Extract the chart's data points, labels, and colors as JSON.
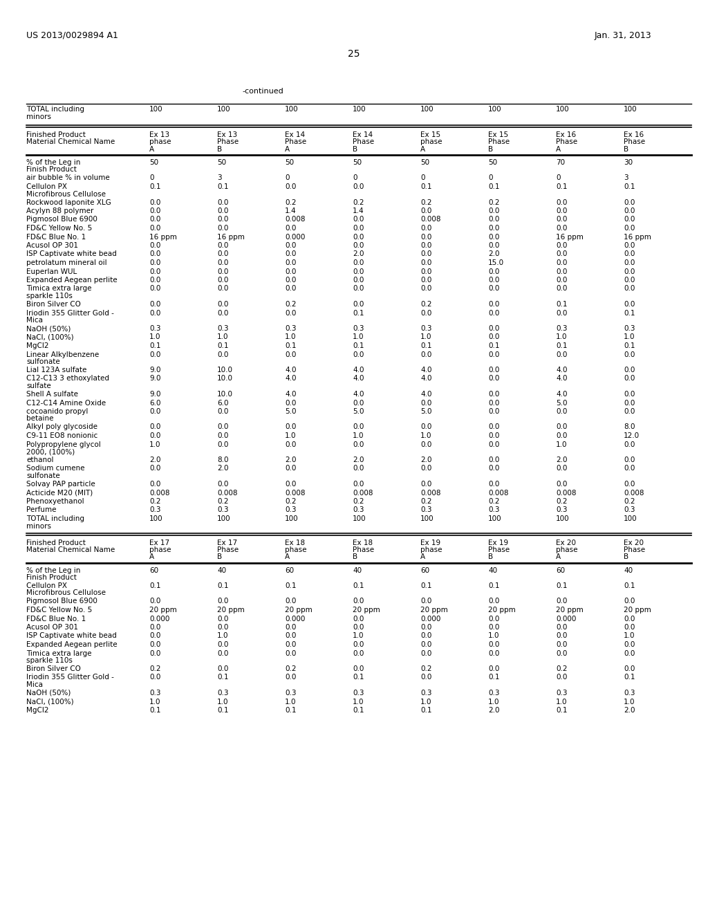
{
  "header_left": "US 2013/0029894 A1",
  "header_right": "Jan. 31, 2013",
  "page_number": "25",
  "continued_text": "-continued",
  "table1_total_row": [
    "TOTAL including\nminors",
    "100",
    "100",
    "100",
    "100",
    "100",
    "100",
    "100",
    "100"
  ],
  "table1_col_ex": [
    "Ex 13",
    "Ex 13",
    "Ex 14",
    "Ex 14",
    "Ex 15",
    "Ex 15",
    "Ex 16",
    "Ex 16"
  ],
  "table1_col_phase": [
    "phase",
    "Phase",
    "Phase",
    "Phase",
    "phase",
    "Phase",
    "Phase",
    "Phase"
  ],
  "table1_col_ab": [
    "A",
    "B",
    "A",
    "B",
    "A",
    "B",
    "A",
    "B"
  ],
  "table1_rows": [
    [
      "% of the Leg in\nFinish Product",
      "50",
      "50",
      "50",
      "50",
      "50",
      "50",
      "70",
      "30"
    ],
    [
      "air bubble % in volume",
      "0",
      "3",
      "0",
      "0",
      "0",
      "0",
      "0",
      "3"
    ],
    [
      "Cellulon PX\nMicrofibrous Cellulose",
      "0.1",
      "0.1",
      "0.0",
      "0.0",
      "0.1",
      "0.1",
      "0.1",
      "0.1"
    ],
    [
      "Rockwood laponite XLG",
      "0.0",
      "0.0",
      "0.2",
      "0.2",
      "0.2",
      "0.2",
      "0.0",
      "0.0"
    ],
    [
      "Acylyn 88 polymer",
      "0.0",
      "0.0",
      "1.4",
      "1.4",
      "0.0",
      "0.0",
      "0.0",
      "0.0"
    ],
    [
      "Pigmosol Blue 6900",
      "0.0",
      "0.0",
      "0.008",
      "0.0",
      "0.008",
      "0.0",
      "0.0",
      "0.0"
    ],
    [
      "FD&C Yellow No. 5",
      "0.0",
      "0.0",
      "0.0",
      "0.0",
      "0.0",
      "0.0",
      "0.0",
      "0.0"
    ],
    [
      "FD&C Blue No. 1",
      "16 ppm",
      "16 ppm",
      "0.000",
      "0.0",
      "0.0",
      "0.0",
      "16 ppm",
      "16 ppm"
    ],
    [
      "Acusol OP 301",
      "0.0",
      "0.0",
      "0.0",
      "0.0",
      "0.0",
      "0.0",
      "0.0",
      "0.0"
    ],
    [
      "ISP Captivate white bead",
      "0.0",
      "0.0",
      "0.0",
      "2.0",
      "0.0",
      "2.0",
      "0.0",
      "0.0"
    ],
    [
      "petrolatum mineral oil",
      "0.0",
      "0.0",
      "0.0",
      "0.0",
      "0.0",
      "15.0",
      "0.0",
      "0.0"
    ],
    [
      "Euperlan WUL",
      "0.0",
      "0.0",
      "0.0",
      "0.0",
      "0.0",
      "0.0",
      "0.0",
      "0.0"
    ],
    [
      "Expanded Aegean perlite",
      "0.0",
      "0.0",
      "0.0",
      "0.0",
      "0.0",
      "0.0",
      "0.0",
      "0.0"
    ],
    [
      "Timica extra large\nsparkle 110s",
      "0.0",
      "0.0",
      "0.0",
      "0.0",
      "0.0",
      "0.0",
      "0.0",
      "0.0"
    ],
    [
      "Biron Silver CO",
      "0.0",
      "0.0",
      "0.2",
      "0.0",
      "0.2",
      "0.0",
      "0.1",
      "0.0"
    ],
    [
      "Iriodin 355 Glitter Gold -\nMica",
      "0.0",
      "0.0",
      "0.0",
      "0.1",
      "0.0",
      "0.0",
      "0.0",
      "0.1"
    ],
    [
      "NaOH (50%)",
      "0.3",
      "0.3",
      "0.3",
      "0.3",
      "0.3",
      "0.0",
      "0.3",
      "0.3"
    ],
    [
      "NaCl, (100%)",
      "1.0",
      "1.0",
      "1.0",
      "1.0",
      "1.0",
      "0.0",
      "1.0",
      "1.0"
    ],
    [
      "MgCl2",
      "0.1",
      "0.1",
      "0.1",
      "0.1",
      "0.1",
      "0.1",
      "0.1",
      "0.1"
    ],
    [
      "Linear Alkylbenzene\nsulfonate",
      "0.0",
      "0.0",
      "0.0",
      "0.0",
      "0.0",
      "0.0",
      "0.0",
      "0.0"
    ],
    [
      "Lial 123A sulfate",
      "9.0",
      "10.0",
      "4.0",
      "4.0",
      "4.0",
      "0.0",
      "4.0",
      "0.0"
    ],
    [
      "C12-C13 3 ethoxylated\nsulfate",
      "9.0",
      "10.0",
      "4.0",
      "4.0",
      "4.0",
      "0.0",
      "4.0",
      "0.0"
    ],
    [
      "Shell A sulfate",
      "9.0",
      "10.0",
      "4.0",
      "4.0",
      "4.0",
      "0.0",
      "4.0",
      "0.0"
    ],
    [
      "C12-C14 Amine Oxide",
      "6.0",
      "6.0",
      "0.0",
      "0.0",
      "0.0",
      "0.0",
      "5.0",
      "0.0"
    ],
    [
      "cocoanido propyl\nbetaine",
      "0.0",
      "0.0",
      "5.0",
      "5.0",
      "5.0",
      "0.0",
      "0.0",
      "0.0"
    ],
    [
      "Alkyl poly glycoside",
      "0.0",
      "0.0",
      "0.0",
      "0.0",
      "0.0",
      "0.0",
      "0.0",
      "8.0"
    ],
    [
      "C9-11 EO8 nonionic",
      "0.0",
      "0.0",
      "1.0",
      "1.0",
      "1.0",
      "0.0",
      "0.0",
      "12.0"
    ],
    [
      "Polypropylene glycol\n2000, (100%)",
      "1.0",
      "0.0",
      "0.0",
      "0.0",
      "0.0",
      "0.0",
      "1.0",
      "0.0"
    ],
    [
      "ethanol",
      "2.0",
      "8.0",
      "2.0",
      "2.0",
      "2.0",
      "0.0",
      "2.0",
      "0.0"
    ],
    [
      "Sodium cumene\nsulfonate",
      "0.0",
      "2.0",
      "0.0",
      "0.0",
      "0.0",
      "0.0",
      "0.0",
      "0.0"
    ],
    [
      "Solvay PAP particle",
      "0.0",
      "0.0",
      "0.0",
      "0.0",
      "0.0",
      "0.0",
      "0.0",
      "0.0"
    ],
    [
      "Acticide M20 (MIT)",
      "0.008",
      "0.008",
      "0.008",
      "0.008",
      "0.008",
      "0.008",
      "0.008",
      "0.008"
    ],
    [
      "Phenoxyethanol",
      "0.2",
      "0.2",
      "0.2",
      "0.2",
      "0.2",
      "0.2",
      "0.2",
      "0.2"
    ],
    [
      "Perfume",
      "0.3",
      "0.3",
      "0.3",
      "0.3",
      "0.3",
      "0.3",
      "0.3",
      "0.3"
    ],
    [
      "TOTAL including\nminors",
      "100",
      "100",
      "100",
      "100",
      "100",
      "100",
      "100",
      "100"
    ]
  ],
  "table2_col_ex": [
    "Ex 17",
    "Ex 17",
    "Ex 18",
    "Ex 18",
    "Ex 19",
    "Ex 19",
    "Ex 20",
    "Ex 20"
  ],
  "table2_col_phase": [
    "phase",
    "Phase",
    "phase",
    "Phase",
    "phase",
    "Phase",
    "phase",
    "Phase"
  ],
  "table2_col_ab": [
    "A",
    "B",
    "A",
    "B",
    "A",
    "B",
    "A",
    "B"
  ],
  "table2_rows": [
    [
      "% of the Leg in\nFinish Product",
      "60",
      "40",
      "60",
      "40",
      "60",
      "40",
      "60",
      "40"
    ],
    [
      "Cellulon PX\nMicrofibrous Cellulose",
      "0.1",
      "0.1",
      "0.1",
      "0.1",
      "0.1",
      "0.1",
      "0.1",
      "0.1"
    ],
    [
      "Pigmosol Blue 6900",
      "0.0",
      "0.0",
      "0.0",
      "0.0",
      "0.0",
      "0.0",
      "0.0",
      "0.0"
    ],
    [
      "FD&C Yellow No. 5",
      "20 ppm",
      "20 ppm",
      "20 ppm",
      "20 ppm",
      "20 ppm",
      "20 ppm",
      "20 ppm",
      "20 ppm"
    ],
    [
      "FD&C Blue No. 1",
      "0.000",
      "0.0",
      "0.000",
      "0.0",
      "0.000",
      "0.0",
      "0.000",
      "0.0"
    ],
    [
      "Acusol OP 301",
      "0.0",
      "0.0",
      "0.0",
      "0.0",
      "0.0",
      "0.0",
      "0.0",
      "0.0"
    ],
    [
      "ISP Captivate white bead",
      "0.0",
      "1.0",
      "0.0",
      "1.0",
      "0.0",
      "1.0",
      "0.0",
      "1.0"
    ],
    [
      "Expanded Aegean perlite",
      "0.0",
      "0.0",
      "0.0",
      "0.0",
      "0.0",
      "0.0",
      "0.0",
      "0.0"
    ],
    [
      "Timica extra large\nsparkle 110s",
      "0.0",
      "0.0",
      "0.0",
      "0.0",
      "0.0",
      "0.0",
      "0.0",
      "0.0"
    ],
    [
      "Biron Silver CO",
      "0.2",
      "0.0",
      "0.2",
      "0.0",
      "0.2",
      "0.0",
      "0.2",
      "0.0"
    ],
    [
      "Iriodin 355 Glitter Gold -\nMica",
      "0.0",
      "0.1",
      "0.0",
      "0.1",
      "0.0",
      "0.1",
      "0.0",
      "0.1"
    ],
    [
      "NaOH (50%)",
      "0.3",
      "0.3",
      "0.3",
      "0.3",
      "0.3",
      "0.3",
      "0.3",
      "0.3"
    ],
    [
      "NaCl, (100%)",
      "1.0",
      "1.0",
      "1.0",
      "1.0",
      "1.0",
      "1.0",
      "1.0",
      "1.0"
    ],
    [
      "MgCl2",
      "0.1",
      "0.1",
      "0.1",
      "0.1",
      "0.1",
      "2.0",
      "0.1",
      "2.0"
    ]
  ],
  "fs_header": 9,
  "fs_page": 10,
  "fs_continued": 8,
  "fs_table": 7.5
}
